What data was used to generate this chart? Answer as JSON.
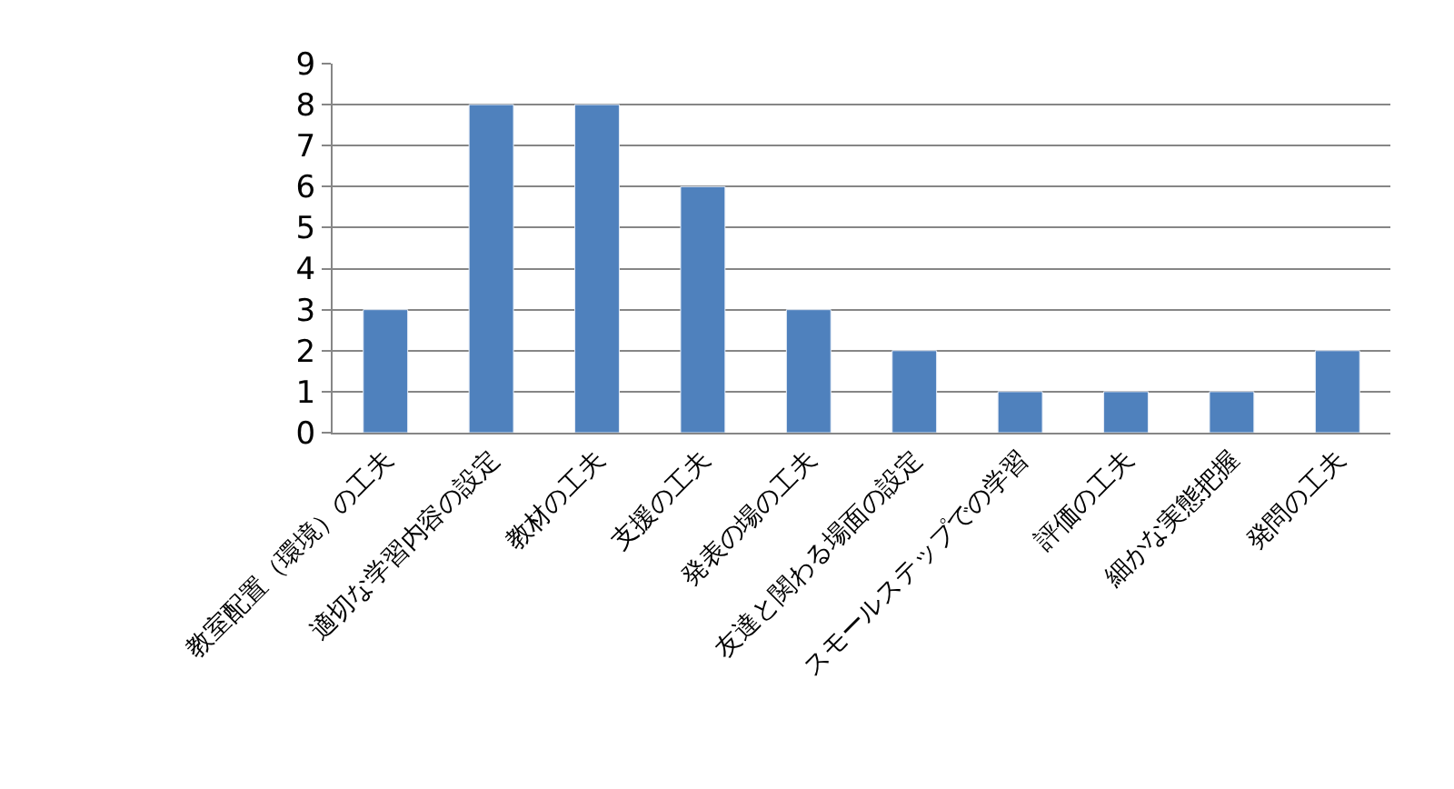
{
  "chart_data": {
    "type": "bar",
    "categories": [
      "教室配置（環境）の工夫",
      "適切な学習内容の設定",
      "教材の工夫",
      "支援の工夫",
      "発表の場の工夫",
      "友達と関わる場面の設定",
      "スモールステップでの学習",
      "評価の工夫",
      "細かな実態把握",
      "発問の工夫"
    ],
    "values": [
      3,
      8,
      8,
      6,
      3,
      2,
      1,
      1,
      1,
      2
    ],
    "color": "#4f81bd",
    "ylim": [
      0,
      9
    ],
    "yticks": [
      0,
      1,
      2,
      3,
      4,
      5,
      6,
      7,
      8,
      9
    ],
    "grid": "y",
    "legend": false
  }
}
